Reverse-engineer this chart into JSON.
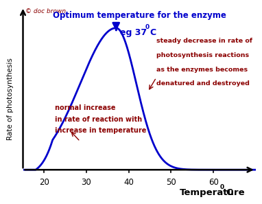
{
  "title": "Optimum temperature for the enzyme",
  "subtitle_pre": "eg 37",
  "subtitle_sup": "0",
  "subtitle_post": "C",
  "xlabel_pre": "Temperature",
  "xlabel_sup": "0",
  "xlabel_post": "C",
  "ylabel": "Rate of photosynthesis",
  "copyright": "© doc brown",
  "xticks": [
    20,
    30,
    40,
    50,
    60
  ],
  "xlim": [
    15,
    70
  ],
  "ylim": [
    -0.04,
    1.15
  ],
  "peak_temp": 37,
  "curve_color": "#0000cc",
  "annotation_color": "#8b0000",
  "title_color": "#0000cc",
  "background_color": "#ffffff",
  "annotation1_line1": "normal increase",
  "annotation1_line2": "in rate of reaction with",
  "annotation1_line3": "increase in temperature",
  "annotation2_line1": "steady decrease in rate of",
  "annotation2_line2": "photosynthesis reactions",
  "annotation2_line3": "as the enzymes becomes",
  "annotation2_line4": "denatured and destroyed"
}
